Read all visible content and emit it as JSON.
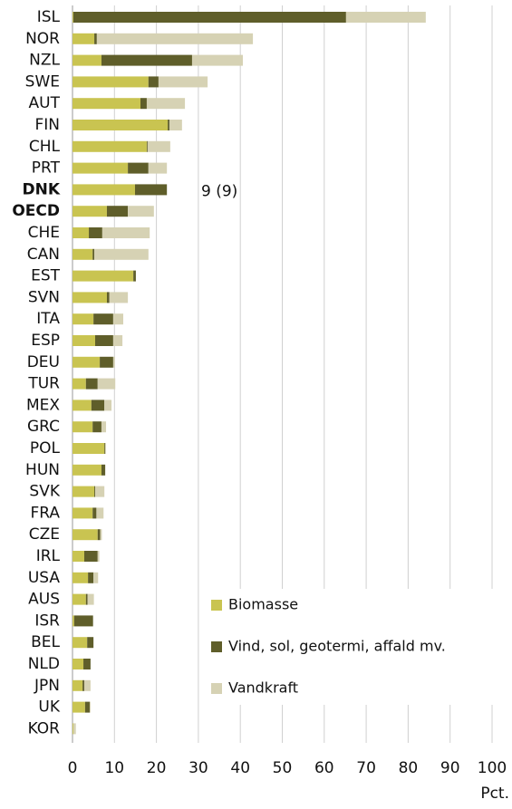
{
  "chart_data": {
    "type": "stacked-bar-horizontal",
    "categories": [
      "ISL",
      "NOR",
      "NZL",
      "SWE",
      "AUT",
      "FIN",
      "CHL",
      "PRT",
      "DNK",
      "OECD",
      "CHE",
      "CAN",
      "EST",
      "SVN",
      "ITA",
      "ESP",
      "DEU",
      "TUR",
      "MEX",
      "GRC",
      "POL",
      "HUN",
      "SVK",
      "FRA",
      "CZE",
      "IRL",
      "USA",
      "AUS",
      "ISR",
      "BEL",
      "NLD",
      "JPN",
      "UK",
      "KOR"
    ],
    "bold_category_indices": [
      8,
      9
    ],
    "series": [
      {
        "name": "Biomasse",
        "color": "#c9c451",
        "values": [
          0.2,
          5.2,
          6.9,
          18.1,
          16.2,
          22.7,
          17.7,
          13.2,
          14.9,
          8.2,
          3.9,
          4.8,
          14.5,
          8.2,
          5.0,
          5.4,
          6.5,
          3.2,
          4.5,
          4.8,
          7.6,
          6.9,
          5.2,
          4.8,
          6.0,
          2.8,
          3.7,
          3.2,
          0.4,
          3.5,
          2.6,
          2.4,
          3.0,
          0.2
        ]
      },
      {
        "name": "Vind, sol, geotermi, affald mv.",
        "color": "#5f5e2a",
        "values": [
          65.0,
          0.6,
          21.6,
          2.4,
          1.5,
          0.4,
          0.2,
          4.9,
          7.6,
          5.0,
          3.2,
          0.4,
          0.6,
          0.6,
          4.7,
          4.3,
          3.2,
          2.8,
          3.1,
          2.1,
          0.2,
          0.9,
          0.2,
          0.9,
          0.6,
          3.2,
          1.3,
          0.4,
          4.5,
          1.5,
          1.7,
          0.4,
          1.1,
          0
        ]
      },
      {
        "name": "Vandkraft",
        "color": "#d6d2b4",
        "values": [
          19.0,
          37.2,
          12.1,
          11.7,
          9.1,
          3.0,
          5.4,
          4.4,
          0,
          6.2,
          11.3,
          12.9,
          0,
          4.4,
          2.4,
          2.2,
          0.4,
          4.2,
          1.7,
          1.1,
          0.2,
          0,
          2.2,
          1.7,
          0.4,
          0.4,
          1.1,
          1.5,
          0,
          0,
          0,
          1.5,
          0.2,
          0.6
        ]
      }
    ],
    "annotation": "9 (9)",
    "xlabel": "Pct.",
    "xlim": [
      0,
      100
    ],
    "xticks": [
      0,
      10,
      20,
      30,
      40,
      50,
      60,
      70,
      80,
      90,
      100
    ],
    "grid": true
  }
}
